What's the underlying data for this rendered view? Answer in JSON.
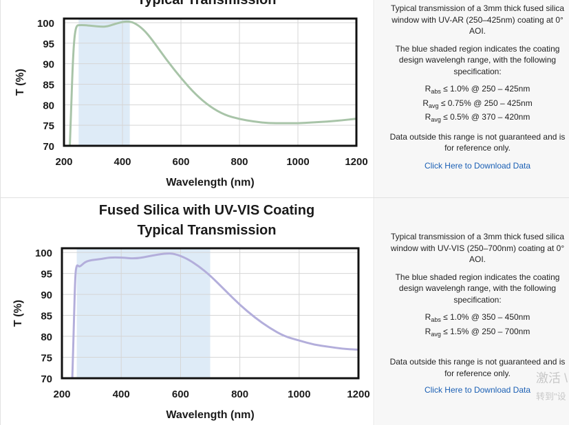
{
  "panels": [
    {
      "description": "Typical transmission of a 3mm thick fused silica window with UV-AR (250–425nm) coating at 0° AOI.",
      "shade_note": "The blue shaded region indicates the coating design wavelengh range, with the following specification:",
      "specs": [
        {
          "sym": "R",
          "sub": "abs",
          "text": " ≤ 1.0% @ 250 – 425nm"
        },
        {
          "sym": "R",
          "sub": "avg",
          "text": " ≤ 0.75% @ 250 – 425nm"
        },
        {
          "sym": "R",
          "sub": "avg",
          "text": " ≤ 0.5% @ 370 – 420nm"
        }
      ],
      "disclaimer": "Data outside this range is not guaranteed and is for reference only.",
      "download_label": "Click Here to Download Data"
    },
    {
      "description": "Typical transmission of a 3mm thick fused silica window with UV-VIS (250–700nm) coating at 0° AOI.",
      "shade_note": "The blue shaded region indicates the coating design wavelengh range, with the following specification:",
      "specs": [
        {
          "sym": "R",
          "sub": "abs",
          "text": " ≤ 1.0% @ 350 – 450nm"
        },
        {
          "sym": "R",
          "sub": "avg",
          "text": " ≤ 1.5% @ 250 – 700nm"
        }
      ],
      "disclaimer": "Data outside this range is not guaranteed and is for reference only.",
      "download_label": "Click Here to Download Data"
    }
  ],
  "watermark": {
    "line1": "激活 \\",
    "line2": "转到\"设"
  },
  "chart_data": [
    {
      "type": "line",
      "title_lines": [
        "Typical Transmission"
      ],
      "xlabel": "Wavelength (nm)",
      "ylabel": "T (%)",
      "xlim": [
        200,
        1200
      ],
      "ylim": [
        70,
        101
      ],
      "xticks": [
        200,
        400,
        600,
        800,
        1000,
        1200
      ],
      "yticks": [
        70,
        75,
        80,
        85,
        90,
        95,
        100
      ],
      "grid": true,
      "shaded_range": [
        250,
        425
      ],
      "shade_color": "#deebf7",
      "line_color": "#a8c4a8",
      "series": [
        {
          "x": [
            220,
            225,
            230,
            235,
            240,
            245,
            250,
            270,
            300,
            330,
            350,
            370,
            400,
            420,
            440,
            470,
            500,
            550,
            600,
            650,
            700,
            750,
            800,
            850,
            900,
            950,
            1000,
            1050,
            1100,
            1150,
            1200
          ],
          "y": [
            70,
            80,
            90,
            96,
            98.5,
            99.3,
            99.4,
            99.4,
            99.2,
            99.0,
            99.1,
            99.6,
            100.2,
            100.3,
            100.0,
            98.5,
            96.0,
            91.0,
            86.5,
            82.5,
            79.5,
            77.5,
            76.5,
            75.9,
            75.5,
            75.5,
            75.5,
            75.7,
            75.9,
            76.2,
            76.6
          ]
        }
      ]
    },
    {
      "type": "line",
      "title_lines": [
        "Fused Silica with UV-VIS Coating",
        "Typical Transmission"
      ],
      "xlabel": "Wavelength (nm)",
      "ylabel": "T (%)",
      "xlim": [
        200,
        1200
      ],
      "ylim": [
        70,
        101
      ],
      "xticks": [
        200,
        400,
        600,
        800,
        1000,
        1200
      ],
      "yticks": [
        70,
        75,
        80,
        85,
        90,
        95,
        100
      ],
      "grid": true,
      "shaded_range": [
        250,
        700
      ],
      "shade_color": "#deebf7",
      "line_color": "#b3aedb",
      "series": [
        {
          "x": [
            235,
            240,
            245,
            250,
            255,
            260,
            270,
            280,
            300,
            330,
            360,
            400,
            450,
            500,
            550,
            580,
            620,
            660,
            700,
            750,
            800,
            850,
            900,
            950,
            1000,
            1050,
            1100,
            1150,
            1200
          ],
          "y": [
            70,
            82,
            95,
            97,
            96.8,
            96.6,
            97.2,
            97.8,
            98.2,
            98.4,
            98.8,
            98.8,
            98.5,
            99.2,
            99.8,
            99.7,
            98.6,
            96.8,
            94.5,
            91.0,
            87.5,
            84.5,
            82.0,
            80.0,
            79.0,
            78.0,
            77.5,
            77.0,
            76.8
          ]
        }
      ]
    }
  ]
}
